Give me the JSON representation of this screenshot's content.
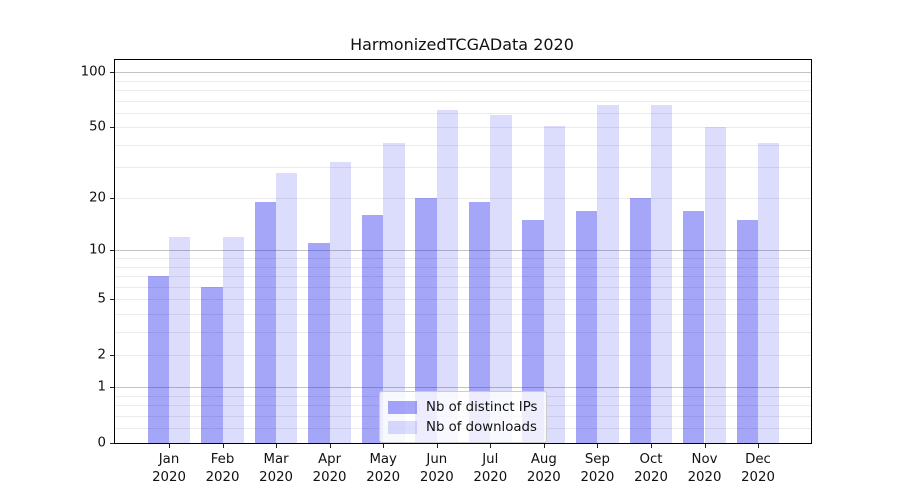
{
  "title": "HarmonizedTCGAData 2020",
  "chart_data": {
    "type": "bar",
    "title": "HarmonizedTCGAData 2020",
    "categories": [
      "Jan 2020",
      "Feb 2020",
      "Mar 2020",
      "Apr 2020",
      "May 2020",
      "Jun 2020",
      "Jul 2020",
      "Aug 2020",
      "Sep 2020",
      "Oct 2020",
      "Nov 2020",
      "Dec 2020"
    ],
    "x_tick_top_lines": [
      "Jan",
      "Feb",
      "Mar",
      "Apr",
      "May",
      "Jun",
      "Jul",
      "Aug",
      "Sep",
      "Oct",
      "Nov",
      "Dec"
    ],
    "x_tick_bottom_line": "2020",
    "series": [
      {
        "name": "Nb of distinct IPs",
        "color_hex": "#a7a7f6",
        "fill": "rgba(20,20,240,0.38)",
        "values": [
          7,
          6,
          19,
          11,
          16,
          20,
          19,
          15,
          17,
          20,
          17,
          15
        ]
      },
      {
        "name": "Nb of downloads",
        "color_hex": "#dcdcfa",
        "fill": "rgba(20,20,240,0.15)",
        "values": [
          12,
          12,
          28,
          32,
          41,
          62,
          58,
          51,
          66,
          66,
          50,
          41
        ]
      }
    ],
    "y_scale": "log1p",
    "ylim": [
      0,
      115
    ],
    "y_tick_values": [
      100,
      50,
      20,
      10,
      5,
      2,
      1,
      0
    ],
    "y_tick_labels": [
      "100",
      "50",
      "20",
      "10",
      "5",
      "2",
      "1",
      "0"
    ],
    "y_major_gridlines": [
      1,
      10,
      100
    ],
    "y_minor_gridlines": [
      0.2,
      0.4,
      0.6,
      0.8,
      2,
      3,
      4,
      5,
      6,
      7,
      8,
      9,
      20,
      30,
      40,
      50,
      60,
      70,
      80,
      90
    ],
    "grid": true,
    "legend_position": "lower center"
  },
  "colors": {
    "background": "#ffffff",
    "axis": "#000000",
    "major_grid": "#c3c3c3",
    "minor_grid": "#ebebeb",
    "text": "#111111"
  }
}
